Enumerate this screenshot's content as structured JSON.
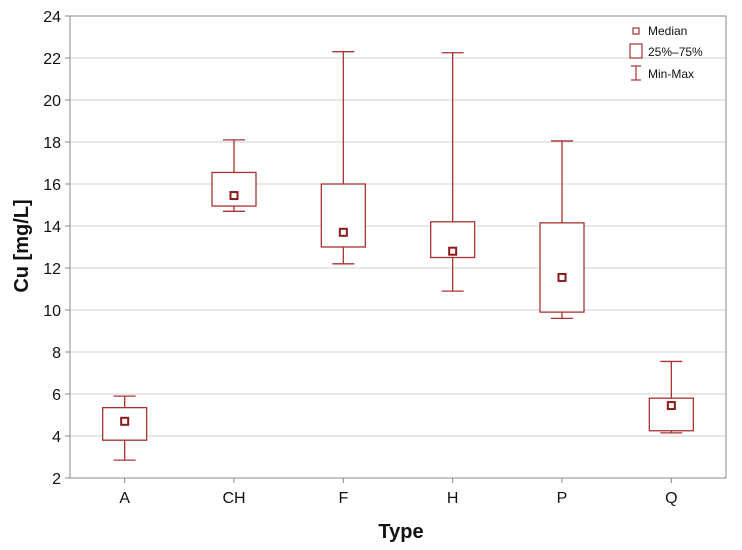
{
  "chart_data": {
    "type": "box",
    "xlabel": "Type",
    "ylabel": "Cu [mg/L]",
    "ylim": [
      2,
      24
    ],
    "yticks": [
      2,
      4,
      6,
      8,
      10,
      12,
      14,
      16,
      18,
      20,
      22,
      24
    ],
    "grid": true,
    "legend_position": "top-right",
    "legend": {
      "median": "Median",
      "box": "25%–75%",
      "whisker": "Min-Max"
    },
    "categories": [
      "A",
      "CH",
      "F",
      "H",
      "P",
      "Q"
    ],
    "series": [
      {
        "category": "A",
        "min": 2.85,
        "q1": 3.8,
        "median": 4.7,
        "q3": 5.35,
        "max": 5.9
      },
      {
        "category": "CH",
        "min": 14.7,
        "q1": 14.95,
        "median": 15.45,
        "q3": 16.55,
        "max": 18.1
      },
      {
        "category": "F",
        "min": 12.2,
        "q1": 13.0,
        "median": 13.7,
        "q3": 16.0,
        "max": 22.3
      },
      {
        "category": "H",
        "min": 10.9,
        "q1": 12.5,
        "median": 12.8,
        "q3": 14.2,
        "max": 22.25
      },
      {
        "category": "P",
        "min": 9.6,
        "q1": 9.9,
        "median": 11.55,
        "q3": 14.15,
        "max": 18.05
      },
      {
        "category": "Q",
        "min": 4.15,
        "q1": 4.25,
        "median": 5.45,
        "q3": 5.8,
        "max": 7.55
      }
    ],
    "colors": {
      "stroke": "#a83232",
      "median_fill": "#8b1a1a",
      "grid": "#d0d0d0",
      "frame": "#888888"
    }
  }
}
